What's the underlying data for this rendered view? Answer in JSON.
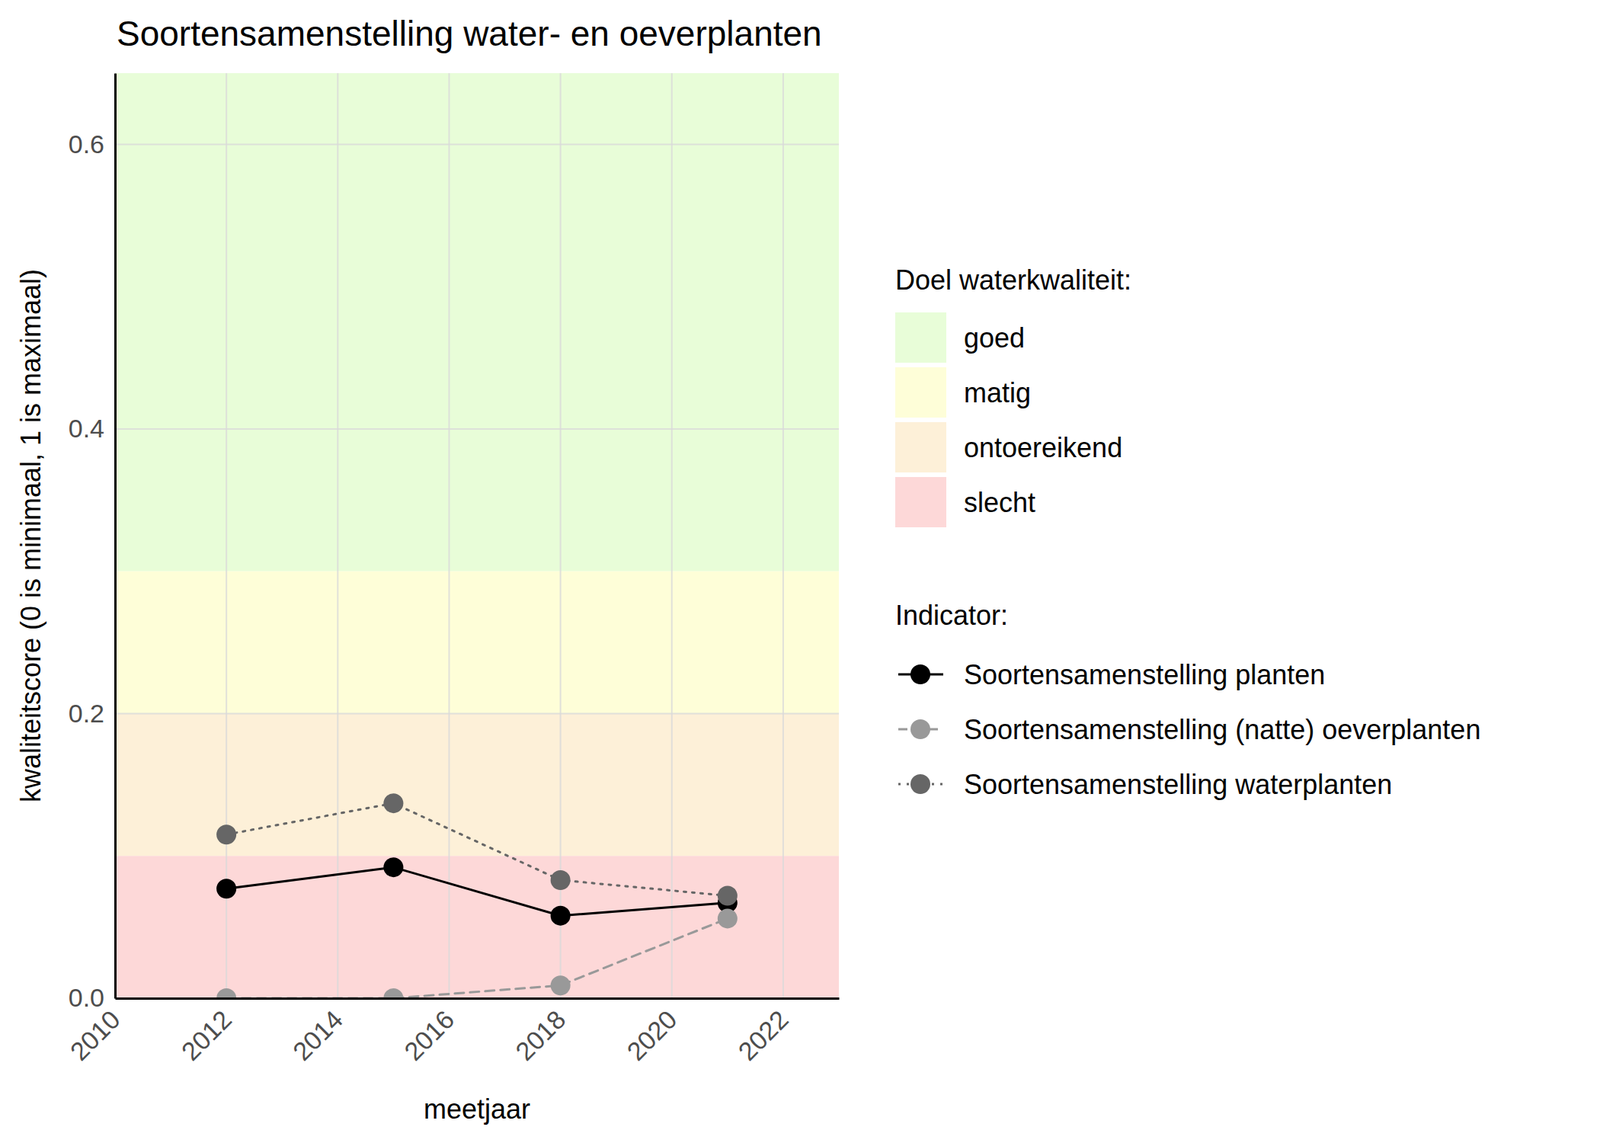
{
  "chart_data": {
    "type": "line",
    "title": "Soortensamenstelling water- en oeverplanten",
    "x_label": "meetjaar",
    "y_label": "kwaliteitscore (0 is minimaal, 1 is maximaal)",
    "x": [
      2012,
      2015,
      2018,
      2021
    ],
    "xlim": [
      2010,
      2023
    ],
    "xticks": [
      2010,
      2012,
      2014,
      2016,
      2018,
      2020,
      2022
    ],
    "ylim": [
      0,
      0.65
    ],
    "yticks": [
      {
        "value": 0,
        "label": "0.0"
      },
      0.2,
      0.4,
      0.6
    ],
    "grid": true,
    "band_legend_title": "Doel waterkwaliteit:",
    "bands": [
      {
        "name": "goed",
        "color": "#e8fdd8",
        "range": [
          0.3,
          0.65
        ]
      },
      {
        "name": "matig",
        "color": "#fefed8",
        "range": [
          0.2,
          0.3
        ]
      },
      {
        "name": "ontoereikend",
        "color": "#fdf0d8",
        "range": [
          0.1,
          0.2
        ]
      },
      {
        "name": "slecht",
        "color": "#fdd8d8",
        "range": [
          0,
          0.1
        ]
      }
    ],
    "legend_title": "Indicator:",
    "series": [
      {
        "name": "Soortensamenstelling planten",
        "color": "#000000",
        "line_style": "solid",
        "marker": "circle",
        "values": [
          0.077,
          0.092,
          0.058,
          0.067
        ]
      },
      {
        "name": "Soortensamenstelling (natte) oeverplanten",
        "color": "#999999",
        "line_style": "dashed",
        "marker": "circle",
        "values": [
          0,
          0,
          0.009,
          0.056
        ]
      },
      {
        "name": "Soortensamenstelling waterplanten",
        "color": "#666666",
        "line_style": "dotted",
        "marker": "circle",
        "values": [
          0.115,
          0.137,
          0.083,
          0.072
        ]
      }
    ]
  }
}
